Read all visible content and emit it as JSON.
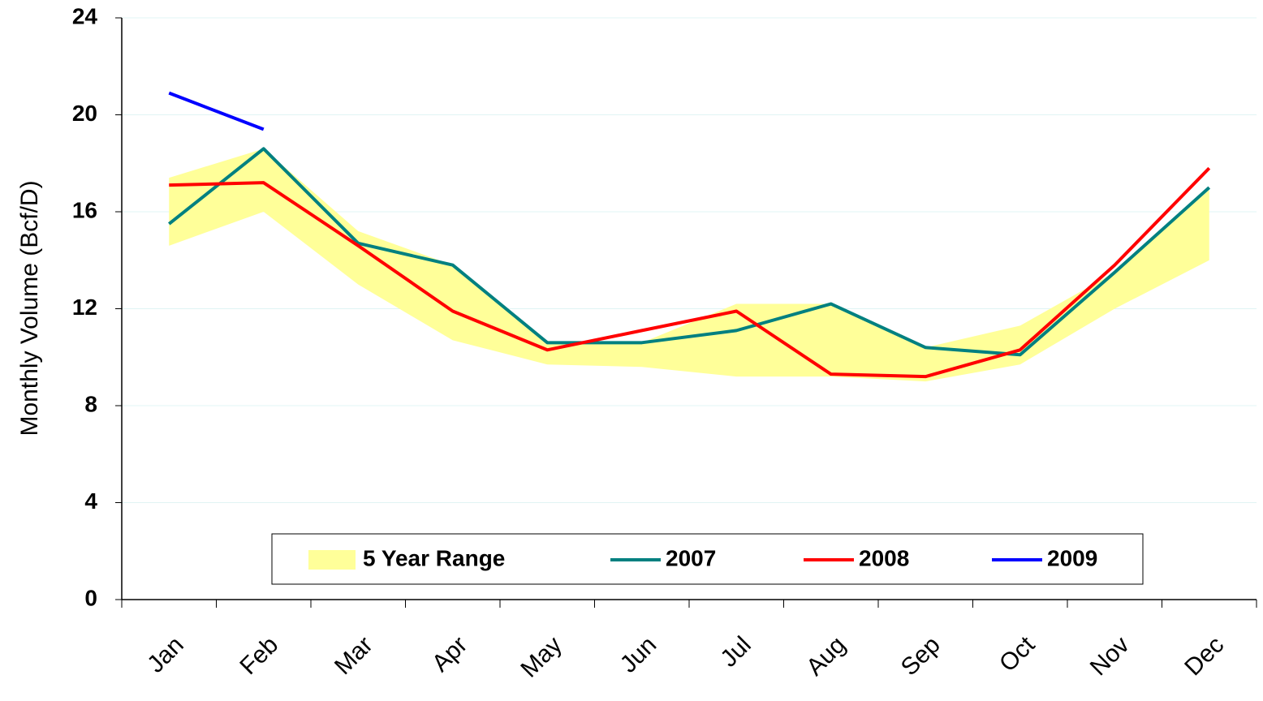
{
  "chart_data": {
    "type": "line",
    "y_label": "Monthly Volume (Bcf/D)",
    "categories": [
      "Jan",
      "Feb",
      "Mar",
      "Apr",
      "May",
      "Jun",
      "Jul",
      "Aug",
      "Sep",
      "Oct",
      "Nov",
      "Dec"
    ],
    "range": {
      "name": "5 Year Range",
      "color": "#ffff99",
      "low": [
        14.6,
        16.0,
        13.0,
        10.7,
        9.7,
        9.6,
        9.2,
        9.2,
        9.0,
        9.7,
        12.0,
        14.0
      ],
      "high": [
        17.4,
        18.6,
        15.2,
        13.8,
        10.6,
        10.6,
        12.2,
        12.2,
        10.4,
        11.3,
        13.5,
        16.9
      ]
    },
    "series": [
      {
        "name": "2007",
        "color": "#008080",
        "values": [
          15.5,
          18.6,
          14.7,
          13.8,
          10.6,
          10.6,
          11.1,
          12.2,
          10.4,
          10.1,
          13.5,
          17.0
        ]
      },
      {
        "name": "2008",
        "color": "#ff0000",
        "values": [
          17.1,
          17.2,
          14.6,
          11.9,
          10.3,
          11.1,
          11.9,
          9.3,
          9.2,
          10.3,
          13.8,
          17.8
        ]
      },
      {
        "name": "2009",
        "color": "#0000ff",
        "values": [
          20.9,
          19.4,
          null,
          null,
          null,
          null,
          null,
          null,
          null,
          null,
          null,
          null
        ]
      }
    ],
    "ylim": [
      0,
      24
    ],
    "yticks": [
      0,
      4,
      8,
      12,
      16,
      20,
      24
    ],
    "grid": true
  }
}
